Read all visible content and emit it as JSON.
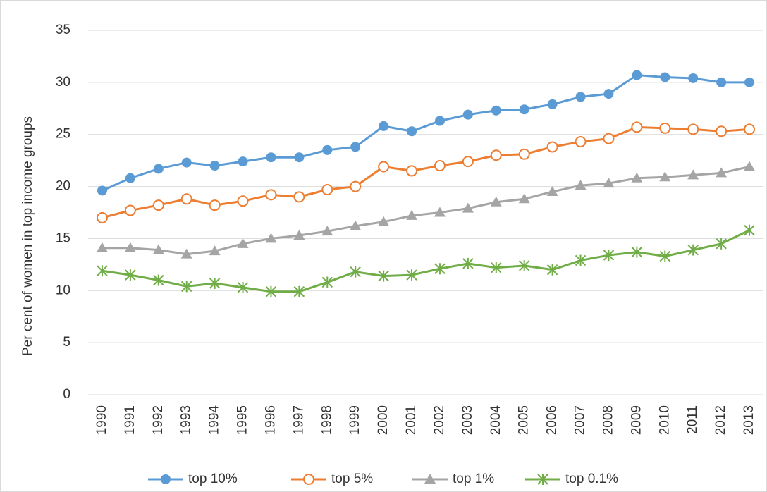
{
  "chart_data": {
    "type": "line",
    "y_label": "Per cent of women in top income groups",
    "categories": [
      "1990",
      "1991",
      "1992",
      "1993",
      "1994",
      "1995",
      "1996",
      "1997",
      "1998",
      "1999",
      "2000",
      "2001",
      "2002",
      "2003",
      "2004",
      "2005",
      "2006",
      "2007",
      "2008",
      "2009",
      "2010",
      "2011",
      "2012",
      "2013"
    ],
    "series": [
      {
        "name": "top 10%",
        "color": "#5b9bd5",
        "marker": "filled-circle",
        "values": [
          19.6,
          20.8,
          21.7,
          22.3,
          22.0,
          22.4,
          22.8,
          22.8,
          23.5,
          23.8,
          25.8,
          25.3,
          26.3,
          26.9,
          27.3,
          27.4,
          27.9,
          28.6,
          28.9,
          30.7,
          30.5,
          30.4,
          30.0,
          30.0
        ]
      },
      {
        "name": "top 5%",
        "color": "#ed7d31",
        "marker": "open-circle",
        "values": [
          17.0,
          17.7,
          18.2,
          18.8,
          18.2,
          18.6,
          19.2,
          19.0,
          19.7,
          20.0,
          21.9,
          21.5,
          22.0,
          22.4,
          23.0,
          23.1,
          23.8,
          24.3,
          24.6,
          25.7,
          25.6,
          25.5,
          25.3,
          25.5
        ]
      },
      {
        "name": "top 1%",
        "color": "#a5a5a5",
        "marker": "triangle",
        "values": [
          14.1,
          14.1,
          13.9,
          13.5,
          13.8,
          14.5,
          15.0,
          15.3,
          15.7,
          16.2,
          16.6,
          17.2,
          17.5,
          17.9,
          18.5,
          18.8,
          19.5,
          20.1,
          20.3,
          20.8,
          20.9,
          21.1,
          21.3,
          21.9
        ]
      },
      {
        "name": "top 0.1%",
        "color": "#70ad47",
        "marker": "asterisk",
        "values": [
          11.9,
          11.5,
          11.0,
          10.4,
          10.7,
          10.3,
          9.9,
          9.9,
          10.8,
          11.8,
          11.4,
          11.5,
          12.1,
          12.6,
          12.2,
          12.4,
          12.0,
          12.9,
          13.4,
          13.7,
          13.3,
          13.9,
          14.5,
          15.8
        ]
      }
    ],
    "ylim": [
      0,
      35
    ],
    "yticks": [
      0,
      5,
      10,
      15,
      20,
      25,
      30,
      35
    ],
    "grid": true,
    "legend": "bottom"
  }
}
